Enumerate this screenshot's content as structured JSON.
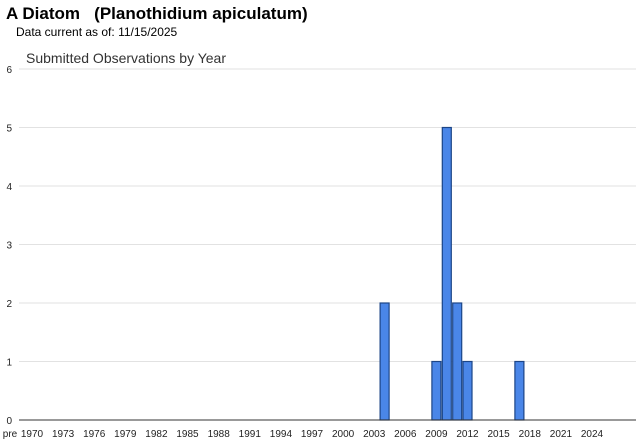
{
  "page": {
    "common_name": "A Diatom",
    "scientific_name": "(Planothidium apiculatum)",
    "data_current_label": "Data current as of:",
    "data_current_date": "11/15/2025"
  },
  "chart_data": {
    "type": "bar",
    "title": "Submitted Observations by Year",
    "xlabel": "",
    "ylabel": "",
    "ylim": [
      0,
      6
    ],
    "yticks": [
      0,
      1,
      2,
      3,
      4,
      5,
      6
    ],
    "grid": true,
    "legend": "none",
    "bar_color": "#4a86e8",
    "bar_border_color": "#1c4587",
    "x_first_label": "pre",
    "x_tick_labels": [
      "pre",
      "1970",
      "1973",
      "1976",
      "1979",
      "1982",
      "1985",
      "1988",
      "1991",
      "1994",
      "1997",
      "2000",
      "2003",
      "2006",
      "2009",
      "2012",
      "2015",
      "2018",
      "2021",
      "2024"
    ],
    "x_start_year": 1970,
    "x_end_year": 2025,
    "bars": [
      {
        "year": 2004,
        "value": 2
      },
      {
        "year": 2009,
        "value": 1
      },
      {
        "year": 2010,
        "value": 5
      },
      {
        "year": 2011,
        "value": 2
      },
      {
        "year": 2012,
        "value": 1
      },
      {
        "year": 2017,
        "value": 1
      }
    ]
  }
}
